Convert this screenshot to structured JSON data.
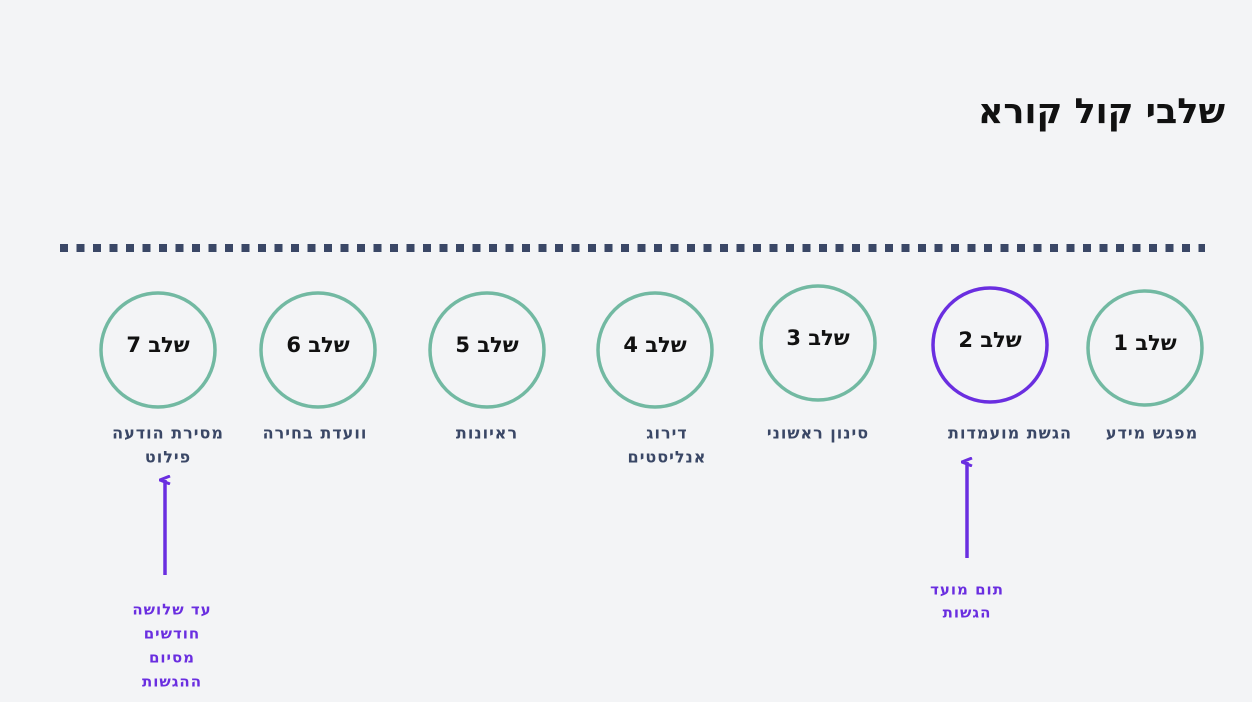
{
  "title": "שלבי קול קורא",
  "steps": [
    {
      "label": "שלב 1",
      "description": [
        "מפגש מידע"
      ],
      "color": "#72b9a2"
    },
    {
      "label": "שלב 2",
      "description": [
        "הגשת מועמדות"
      ],
      "color": "#6a2ee0"
    },
    {
      "label": "שלב 3",
      "description": [
        "סינון ראשוני"
      ],
      "color": "#72b9a2"
    },
    {
      "label": "שלב 4",
      "description": [
        "דירוג",
        "אנליסטים"
      ],
      "color": "#72b9a2"
    },
    {
      "label": "שלב 5",
      "description": [
        "ראיונות"
      ],
      "color": "#72b9a2"
    },
    {
      "label": "שלב 6",
      "description": [
        "וועדת בחירה"
      ],
      "color": "#72b9a2"
    },
    {
      "label": "שלב 7",
      "description": [
        "מסירת הודעה",
        "פילוט"
      ],
      "color": "#72b9a2"
    }
  ],
  "annotations": [
    {
      "step": 2,
      "lines": [
        "תום מועד",
        "הגשות"
      ]
    },
    {
      "step": 7,
      "lines": [
        "עד שלושה",
        "חודשים",
        "מסיום",
        "ההגשות"
      ]
    }
  ]
}
